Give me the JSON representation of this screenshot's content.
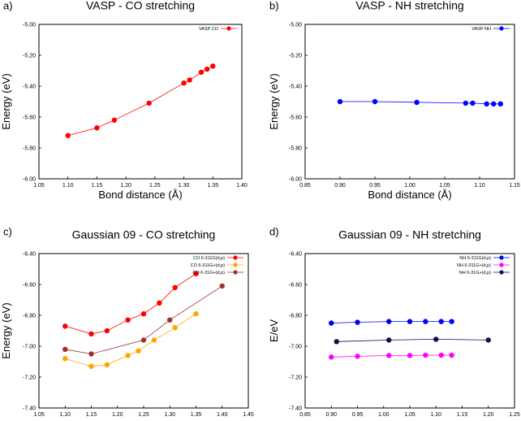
{
  "figure": {
    "panel_labels": [
      "a)",
      "b)",
      "c)",
      "d)"
    ]
  },
  "chart_data": [
    {
      "type": "line",
      "panel_label": "a)",
      "title": "VASP - CO stretching",
      "xlabel": "Bond distance (Å)",
      "ylabel": "Energy (eV)",
      "xlim": [
        1.05,
        1.4
      ],
      "ylim": [
        -6.0,
        -5.0
      ],
      "xticks": [
        "1.05",
        "1.10",
        "1.15",
        "1.20",
        "1.25",
        "1.30",
        "1.35",
        "1.40"
      ],
      "yticks": [
        "-6.00",
        "-5.80",
        "-5.60",
        "-5.40",
        "-5.20",
        "-5.00"
      ],
      "legend_position": "top-right",
      "grid": false,
      "series": [
        {
          "name": "VASP CO",
          "color": "#ff0000",
          "x": [
            1.1,
            1.15,
            1.18,
            1.24,
            1.3,
            1.31,
            1.33,
            1.34,
            1.35
          ],
          "y": [
            -5.72,
            -5.67,
            -5.62,
            -5.51,
            -5.38,
            -5.36,
            -5.31,
            -5.29,
            -5.27
          ]
        }
      ]
    },
    {
      "type": "line",
      "panel_label": "b)",
      "title": "VASP - NH stretching",
      "xlabel": "Bond distance (Å)",
      "ylabel": "Energy (eV)",
      "xlim": [
        0.85,
        1.15
      ],
      "ylim": [
        -6.0,
        -5.0
      ],
      "xticks": [
        "0.85",
        "0.90",
        "0.95",
        "1.00",
        "1.05",
        "1.10",
        "1.15"
      ],
      "yticks": [
        "-6.00",
        "-5.80",
        "-5.60",
        "-5.40",
        "-5.20",
        "-5.00"
      ],
      "legend_position": "top-right",
      "grid": false,
      "series": [
        {
          "name": "VASP NH",
          "color": "#0000ff",
          "x": [
            0.9,
            0.95,
            1.01,
            1.08,
            1.09,
            1.11,
            1.12,
            1.13
          ],
          "y": [
            -5.5,
            -5.5,
            -5.505,
            -5.51,
            -5.51,
            -5.515,
            -5.515,
            -5.515
          ]
        }
      ]
    },
    {
      "type": "line",
      "panel_label": "c)",
      "title": "Gaussian 09 - CO stretching",
      "xlabel": "",
      "ylabel": "Energy (eV)",
      "xlim": [
        1.05,
        1.45
      ],
      "ylim": [
        -7.4,
        -6.4
      ],
      "xticks": [
        "1.05",
        "1.10",
        "1.15",
        "1.20",
        "1.25",
        "1.30",
        "1.35",
        "1.40",
        "1.45"
      ],
      "yticks": [
        "-7.40",
        "-7.20",
        "-7.00",
        "-6.80",
        "-6.60",
        "-6.40"
      ],
      "legend_position": "top-right",
      "grid": false,
      "series": [
        {
          "name": "CO 6-311G(d,p)",
          "color": "#ff0000",
          "x": [
            1.1,
            1.15,
            1.18,
            1.22,
            1.25,
            1.28,
            1.31,
            1.35
          ],
          "y": [
            -6.87,
            -6.92,
            -6.9,
            -6.83,
            -6.79,
            -6.72,
            -6.62,
            -6.53
          ]
        },
        {
          "name": "CO 6-311G+(d,p)",
          "color": "#ffa500",
          "x": [
            1.1,
            1.15,
            1.18,
            1.22,
            1.24,
            1.27,
            1.31,
            1.35
          ],
          "y": [
            -7.08,
            -7.13,
            -7.12,
            -7.06,
            -7.03,
            -6.96,
            -6.88,
            -6.79
          ]
        },
        {
          "name": "CO 6-31G+(d,p)",
          "color": "#a0302a",
          "x": [
            1.1,
            1.15,
            1.25,
            1.3,
            1.4
          ],
          "y": [
            -7.02,
            -7.05,
            -6.96,
            -6.83,
            -6.61
          ]
        }
      ]
    },
    {
      "type": "line",
      "panel_label": "d)",
      "title": "Gaussian 09 - NH stretching",
      "xlabel": "",
      "ylabel": "E/eV",
      "xlim": [
        0.85,
        1.25
      ],
      "ylim": [
        -7.4,
        -6.4
      ],
      "xticks": [
        "0.85",
        "0.90",
        "0.95",
        "1.00",
        "1.05",
        "1.10",
        "1.15",
        "1.20",
        "1.25"
      ],
      "yticks": [
        "-7.40",
        "-7.20",
        "-7.00",
        "-6.80",
        "-6.60",
        "-6.40"
      ],
      "legend_position": "top-right",
      "grid": false,
      "series": [
        {
          "name": "NH 6-311G(d,p)",
          "color": "#0000ee",
          "x": [
            0.9,
            0.95,
            1.01,
            1.05,
            1.08,
            1.11,
            1.13
          ],
          "y": [
            -6.85,
            -6.845,
            -6.84,
            -6.84,
            -6.84,
            -6.84,
            -6.84
          ]
        },
        {
          "name": "NH 6-311G+(d,p)",
          "color": "#ff00ff",
          "x": [
            0.9,
            0.95,
            1.01,
            1.05,
            1.08,
            1.11,
            1.13
          ],
          "y": [
            -7.07,
            -7.065,
            -7.06,
            -7.06,
            -7.058,
            -7.058,
            -7.058
          ]
        },
        {
          "name": "NH 6-31G+(d,p)",
          "color": "#101050",
          "x": [
            0.91,
            1.01,
            1.1,
            1.2
          ],
          "y": [
            -6.97,
            -6.96,
            -6.955,
            -6.96
          ]
        }
      ]
    }
  ]
}
